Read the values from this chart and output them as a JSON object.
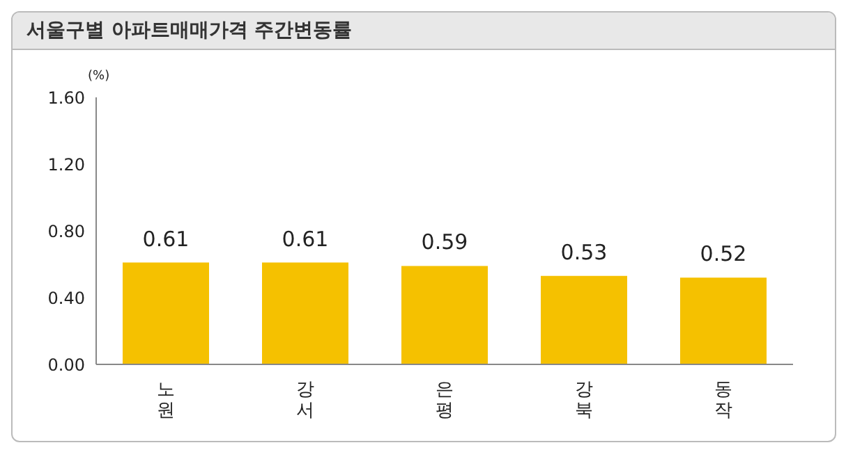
{
  "chart_data": {
    "type": "bar",
    "title": "서울구별 아파트매매가격 주간변동률",
    "ylabel": "(%)",
    "categories": [
      "노원",
      "강서",
      "은평",
      "강북",
      "동작"
    ],
    "values": [
      0.61,
      0.61,
      0.59,
      0.53,
      0.52
    ],
    "color": "#f5c100",
    "ylim": [
      0,
      1.6
    ],
    "yticks": [
      {
        "value": 0,
        "label": "0.00"
      },
      {
        "value": 0.4,
        "label": "0.40"
      },
      {
        "value": 0.8,
        "label": "0.80"
      },
      {
        "value": 1.2,
        "label": "1.20"
      },
      {
        "value": 1.6,
        "label": "1.60"
      }
    ],
    "grid": false,
    "data_labels": true
  }
}
